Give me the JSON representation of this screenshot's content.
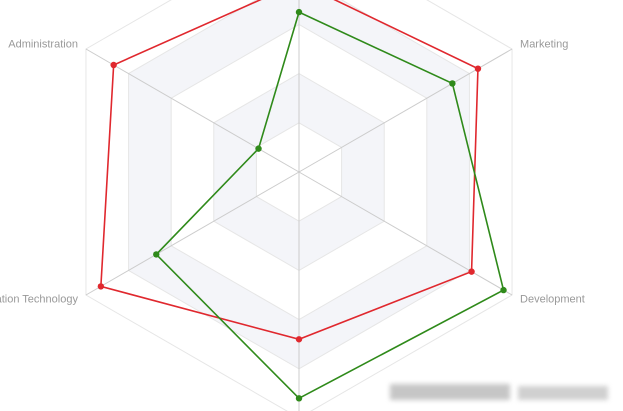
{
  "chart_data": {
    "type": "radar",
    "categories": [
      null,
      "Administration",
      "Information Technology",
      null,
      "Development",
      "Marketing"
    ],
    "series": [
      {
        "color": "#e0282e",
        "values": [
          77,
          87,
          93,
          68,
          81,
          84
        ]
      },
      {
        "color": "#2f8a1a",
        "values": [
          65,
          19,
          67,
          92,
          96,
          72
        ]
      }
    ],
    "rlim": [
      0,
      100
    ],
    "rticks": [
      0,
      20,
      40,
      60,
      80,
      100
    ],
    "grid": true
  }
}
